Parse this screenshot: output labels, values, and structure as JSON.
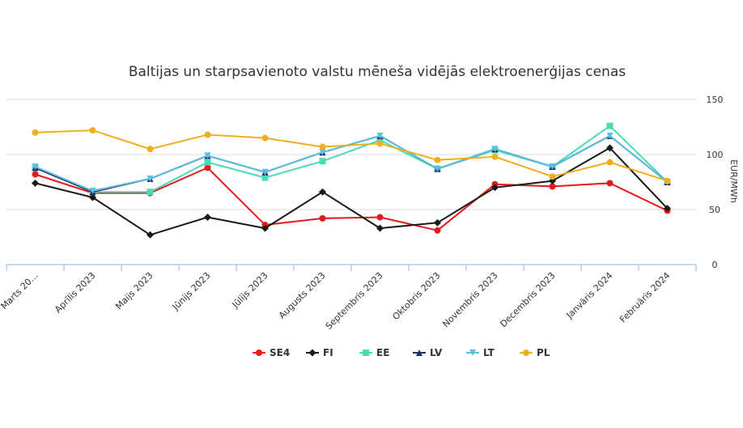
{
  "chart_data": {
    "type": "line",
    "title": "Baltijas un starpsavienoto valstu mēneša vidējās elektroenerģijas cenas",
    "xlabel": "",
    "ylabel": "EUR/MWh",
    "ylim": [
      0,
      150
    ],
    "yticks": [
      "0",
      "50",
      "100",
      "150"
    ],
    "y_axis_side": "right",
    "grid": true,
    "legend": "bottom",
    "categories": [
      "Marts 20…",
      "Aprīlis 2023",
      "Maijs 2023",
      "Jūnijs 2023",
      "Jūlijs 2023",
      "Augusts 2023",
      "Septembris 2023",
      "Oktobris 2023",
      "Novembris 2023",
      "Decembris 2023",
      "Janvāris 2024",
      "Februāris 2024"
    ],
    "series": [
      {
        "name": "SE4",
        "color": "#e31a1c",
        "marker": "circle",
        "values": [
          82,
          65,
          65,
          88,
          36,
          42,
          43,
          31,
          73,
          71,
          74,
          49
        ]
      },
      {
        "name": "FI",
        "color": "#1a1a1a",
        "marker": "diamond",
        "values": [
          74,
          61,
          27,
          43,
          33,
          66,
          33,
          38,
          70,
          76,
          106,
          51
        ]
      },
      {
        "name": "EE",
        "color": "#4dd9b8",
        "marker": "square",
        "values": [
          88,
          66,
          66,
          93,
          79,
          94,
          113,
          87,
          104,
          89,
          126,
          75
        ]
      },
      {
        "name": "LV",
        "color": "#1f2a6b",
        "marker": "triangle",
        "values": [
          88,
          66,
          78,
          99,
          84,
          102,
          117,
          87,
          105,
          89,
          117,
          75
        ]
      },
      {
        "name": "LT",
        "color": "#5bc0de",
        "marker": "triangle-down",
        "values": [
          89,
          67,
          78,
          99,
          84,
          102,
          117,
          87,
          105,
          89,
          117,
          75
        ]
      },
      {
        "name": "PL",
        "color": "#f0ad1e",
        "marker": "circle",
        "values": [
          120,
          122,
          105,
          118,
          115,
          107,
          110,
          95,
          98,
          80,
          93,
          76
        ]
      }
    ]
  }
}
